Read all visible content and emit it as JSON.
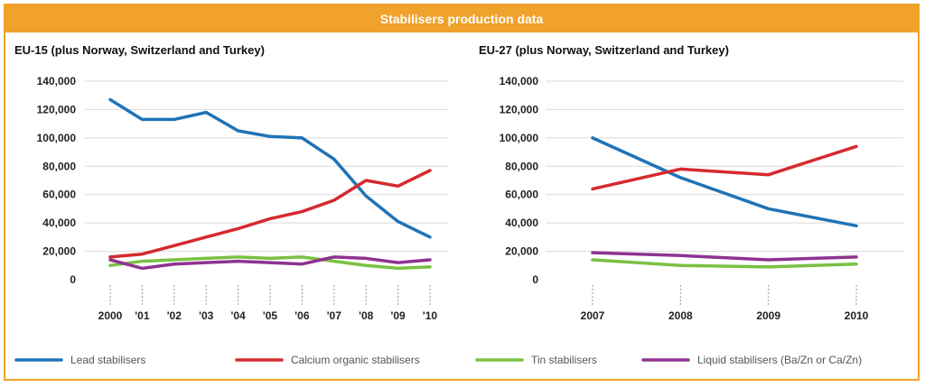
{
  "title": "Stabilisers production data",
  "colors": {
    "lead": "#1f73b7",
    "calcium": "#d52a2f",
    "tin": "#7ac143",
    "liquid": "#8e3391",
    "header": "#f0a22a",
    "grid": "#d9d9d9"
  },
  "legend": [
    {
      "key": "lead",
      "label": "Lead stabilisers"
    },
    {
      "key": "calcium",
      "label": "Calcium organic stabilisers"
    },
    {
      "key": "tin",
      "label": "Tin stabilisers"
    },
    {
      "key": "liquid",
      "label": "Liquid stabilisers (Ba/Zn or Ca/Zn)"
    }
  ],
  "chart_data": [
    {
      "type": "line",
      "title": "EU-15 (plus Norway, Switzerland and Turkey)",
      "categories": [
        "2000",
        "'01",
        "'02",
        "'03",
        "'04",
        "'05",
        "'06",
        "'07",
        "'08",
        "'09",
        "'10"
      ],
      "ylim": [
        0,
        140000
      ],
      "yticks": [
        "0",
        "20,000",
        "40,000",
        "60,000",
        "80,000",
        "100,000",
        "120,000",
        "140,000"
      ],
      "grid": true,
      "series": [
        {
          "name": "Lead stabilisers",
          "key": "lead",
          "values": [
            127000,
            113000,
            113000,
            118000,
            105000,
            101000,
            100000,
            85000,
            59000,
            41000,
            30000
          ]
        },
        {
          "name": "Calcium organic stabilisers",
          "key": "calcium",
          "values": [
            16000,
            18000,
            24000,
            30000,
            36000,
            43000,
            48000,
            56000,
            70000,
            66000,
            77000
          ]
        },
        {
          "name": "Tin stabilisers",
          "key": "tin",
          "values": [
            10000,
            13000,
            14000,
            15000,
            16000,
            15000,
            16000,
            13000,
            10000,
            8000,
            9000
          ]
        },
        {
          "name": "Liquid stabilisers (Ba/Zn or Ca/Zn)",
          "key": "liquid",
          "values": [
            14000,
            8000,
            11000,
            12000,
            13000,
            12000,
            11000,
            16000,
            15000,
            12000,
            14000
          ]
        }
      ]
    },
    {
      "type": "line",
      "title": "EU-27 (plus Norway, Switzerland and Turkey)",
      "categories": [
        "2007",
        "2008",
        "2009",
        "2010"
      ],
      "ylim": [
        0,
        140000
      ],
      "yticks": [
        "0",
        "20,000",
        "40,000",
        "60,000",
        "80,000",
        "100,000",
        "120,000",
        "140,000"
      ],
      "grid": true,
      "series": [
        {
          "name": "Lead stabilisers",
          "key": "lead",
          "values": [
            100000,
            72000,
            50000,
            38000
          ]
        },
        {
          "name": "Calcium organic stabilisers",
          "key": "calcium",
          "values": [
            64000,
            78000,
            74000,
            94000
          ]
        },
        {
          "name": "Tin stabilisers",
          "key": "tin",
          "values": [
            14000,
            10000,
            9000,
            11000
          ]
        },
        {
          "name": "Liquid stabilisers (Ba/Zn or Ca/Zn)",
          "key": "liquid",
          "values": [
            19000,
            17000,
            14000,
            16000
          ]
        }
      ]
    }
  ]
}
